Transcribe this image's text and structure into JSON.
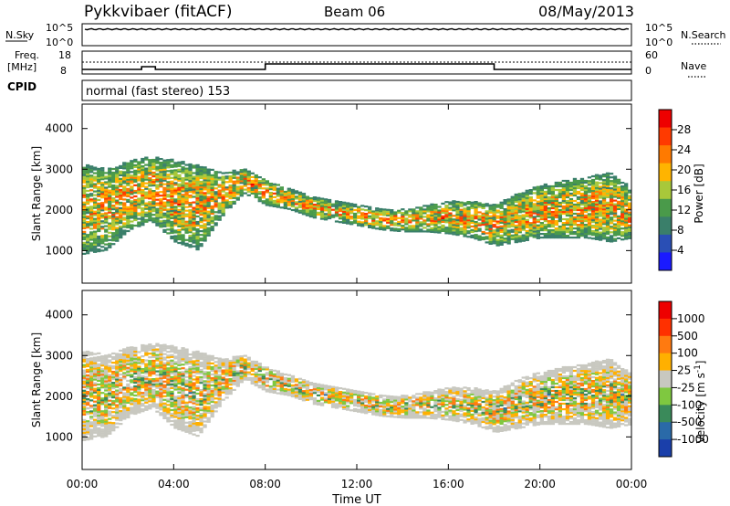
{
  "header": {
    "station": "Pykkvibaer (fitACF)",
    "beam": "Beam 06",
    "date": "08/May/2013"
  },
  "noise_panel": {
    "left_label": "N.Sky",
    "left_ticks": [
      "10^5",
      "10^0"
    ],
    "right_label": "N.Search",
    "right_ticks": [
      "10^5",
      "10^0"
    ]
  },
  "freq_panel": {
    "left_label_1": "Freq.",
    "left_label_2": "[MHz]",
    "left_ticks": [
      "18",
      "8"
    ],
    "right_label": "Nave",
    "right_ticks": [
      "60",
      "0"
    ],
    "cpid_label": "CPID",
    "cpid_text": "normal (fast stereo) 153"
  },
  "chart_data": [
    {
      "type": "heatmap",
      "title": "",
      "xlabel": "Time UT",
      "ylabel": "Slant Range [km]",
      "x_ticks": [
        "00:00",
        "04:00",
        "08:00",
        "12:00",
        "16:00",
        "20:00",
        "00:00"
      ],
      "y_ticks": [
        1000,
        2000,
        3000,
        4000
      ],
      "ylim": [
        200,
        4600
      ],
      "colorbar": {
        "label": "Power [dB]",
        "ticks": [
          4,
          8,
          12,
          16,
          20,
          24,
          28
        ],
        "range": [
          0,
          32
        ],
        "colors": [
          "#1a1aff",
          "#2a4fb5",
          "#3a7f6a",
          "#4a9a4a",
          "#a8c83a",
          "#ffb400",
          "#ff7a00",
          "#ff3a00",
          "#ee0000"
        ]
      }
    },
    {
      "type": "heatmap",
      "title": "",
      "xlabel": "Time UT",
      "ylabel": "Slant Range [km]",
      "x_ticks": [
        "00:00",
        "04:00",
        "08:00",
        "12:00",
        "16:00",
        "20:00",
        "00:00"
      ],
      "y_ticks": [
        1000,
        2000,
        3000,
        4000
      ],
      "ylim": [
        200,
        4600
      ],
      "colorbar": {
        "label": "Velocity [m s^-1]",
        "ticks": [
          "1000",
          "500",
          "100",
          "25",
          "-25",
          "-100",
          "-500",
          "-1000"
        ],
        "colors": [
          "#1a3faa",
          "#2a6aa8",
          "#3a8a5a",
          "#7fc840",
          "#c8c8c0",
          "#ffb000",
          "#ff7a10",
          "#ff3000",
          "#ee0000"
        ]
      }
    }
  ],
  "xaxis_title": "Time UT"
}
